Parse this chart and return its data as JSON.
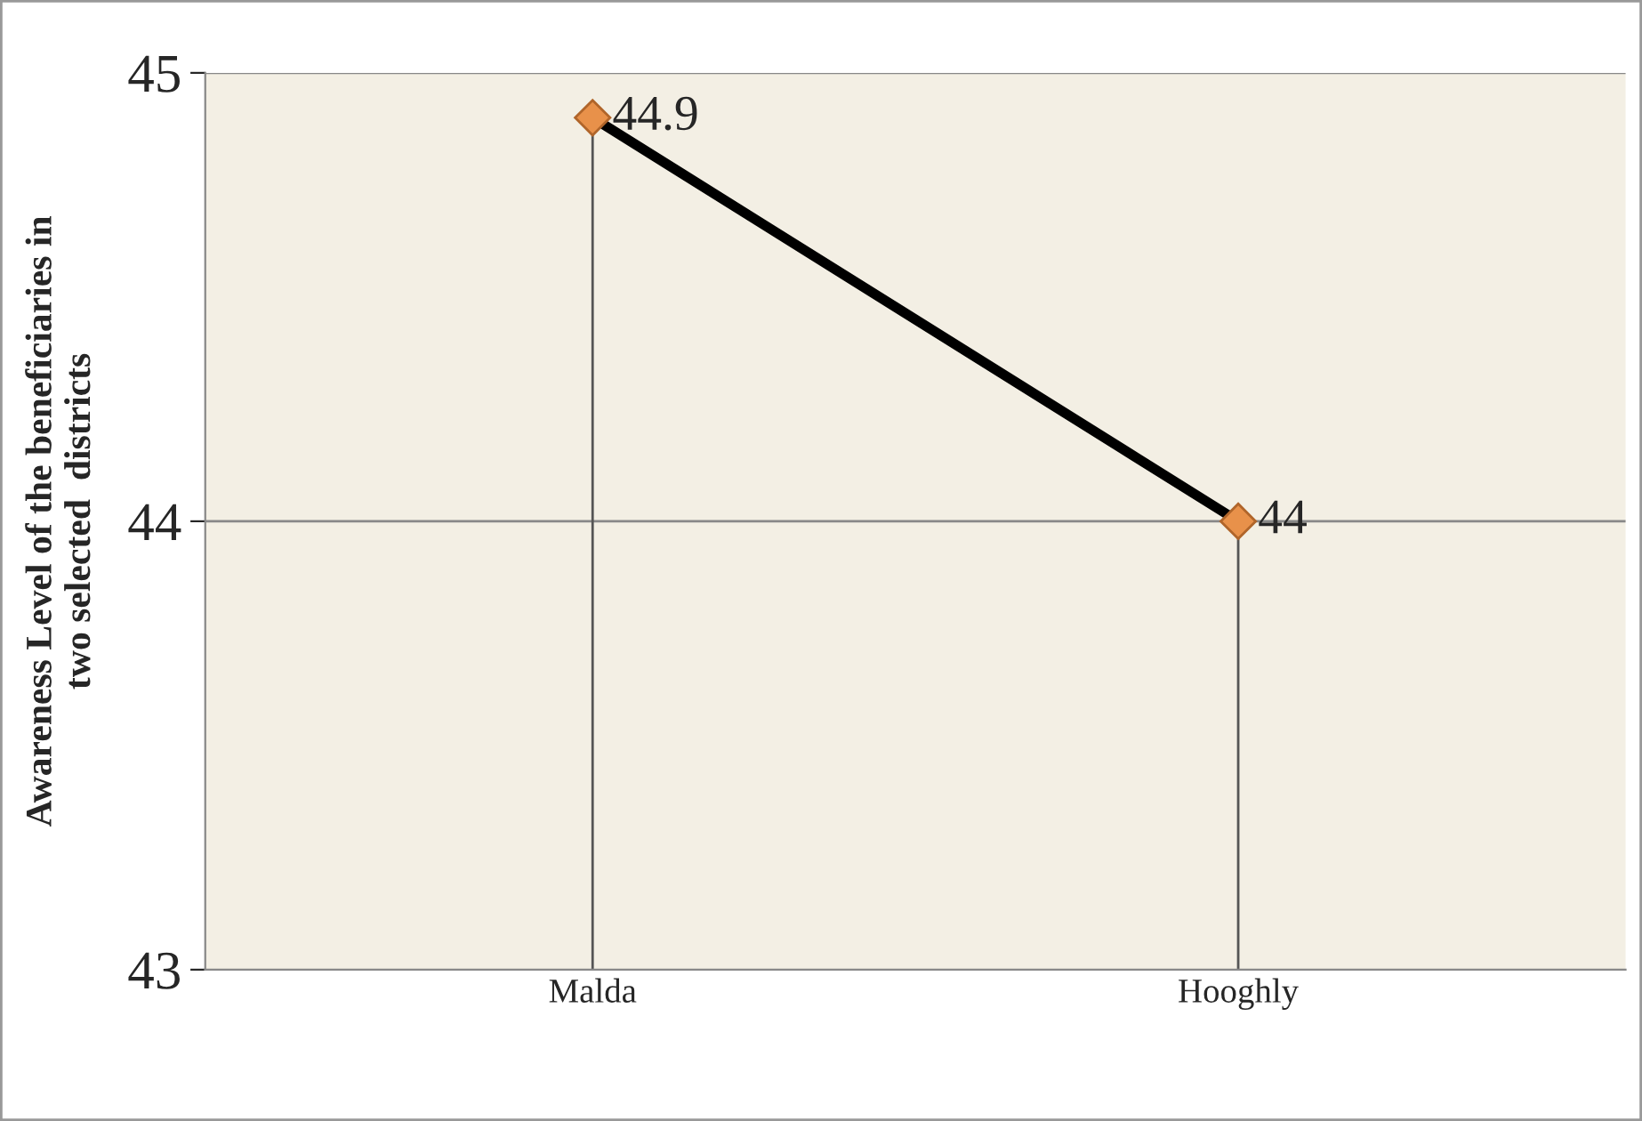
{
  "chart_data": {
    "type": "line",
    "ylabel": "Awareness Level of the beneficiaries in\ntwo selected  districts",
    "categories": [
      "Malda",
      "Hooghly"
    ],
    "series": [
      {
        "color": "#000000",
        "values": [
          44.9,
          44
        ],
        "errors": [
          [
            43,
            44.9
          ],
          [
            43,
            44
          ]
        ]
      }
    ],
    "ylim": [
      43,
      45
    ],
    "yticks": [
      43,
      44,
      45
    ],
    "ref_lines": [
      {
        "axis": "y",
        "value": 44,
        "color": "#888888"
      },
      {
        "axis": "y",
        "value": 45,
        "color": "#888888"
      }
    ],
    "marker": "diamond",
    "line_style": "solid",
    "data_labels": true
  }
}
